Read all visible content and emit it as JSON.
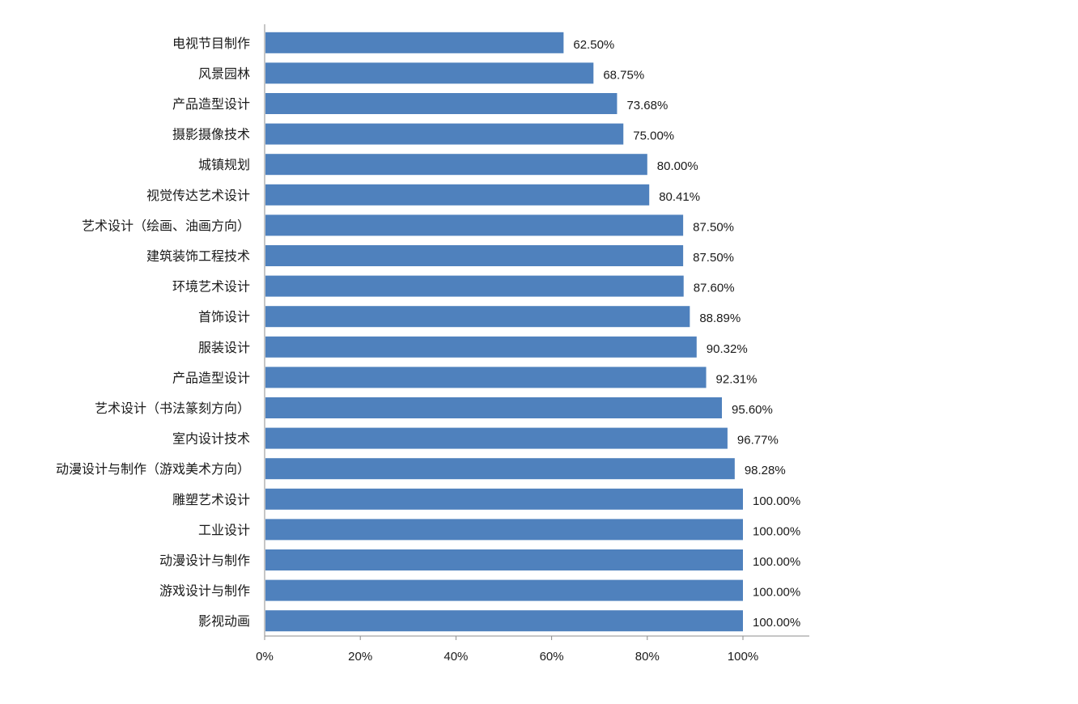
{
  "chart_data": {
    "type": "bar",
    "orientation": "horizontal",
    "title": "",
    "xlabel": "",
    "ylabel": "",
    "xlim": [
      0,
      100
    ],
    "grid": false,
    "legend": "none",
    "bar_color": "#4f81bd",
    "categories": [
      "电视节目制作",
      "风景园林",
      "产品造型设计",
      "摄影摄像技术",
      "城镇规划",
      "视觉传达艺术设计",
      "艺术设计（绘画、油画方向）",
      "建筑装饰工程技术",
      "环境艺术设计",
      "首饰设计",
      "服装设计",
      "产品造型设计",
      "艺术设计（书法篆刻方向）",
      "室内设计技术",
      "动漫设计与制作（游戏美术方向）",
      "雕塑艺术设计",
      "工业设计",
      "动漫设计与制作",
      "游戏设计与制作",
      "影视动画"
    ],
    "values": [
      62.5,
      68.75,
      73.68,
      75.0,
      80.0,
      80.41,
      87.5,
      87.5,
      87.6,
      88.89,
      90.32,
      92.31,
      95.6,
      96.77,
      98.28,
      100.0,
      100.0,
      100.0,
      100.0,
      100.0
    ],
    "value_labels": [
      "62.50%",
      "68.75%",
      "73.68%",
      "75.00%",
      "80.00%",
      "80.41%",
      "87.50%",
      "87.50%",
      "87.60%",
      "88.89%",
      "90.32%",
      "92.31%",
      "95.60%",
      "96.77%",
      "98.28%",
      "100.00%",
      "100.00%",
      "100.00%",
      "100.00%",
      "100.00%"
    ],
    "x_ticks": [
      0,
      20,
      40,
      60,
      80,
      100
    ],
    "x_tick_labels": [
      "0%",
      "20%",
      "40%",
      "60%",
      "80%",
      "100%"
    ]
  }
}
